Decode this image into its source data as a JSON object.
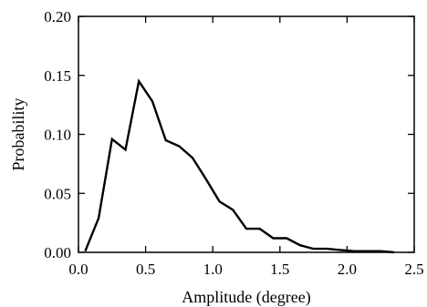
{
  "chart_data": {
    "type": "line",
    "title": "",
    "xlabel": "Amplitude (degree)",
    "ylabel": "Probability",
    "xlim": [
      0.0,
      2.5
    ],
    "ylim": [
      0.0,
      0.2
    ],
    "grid": false,
    "x_ticks": [
      "0.0",
      "0.5",
      "1.0",
      "1.5",
      "2.0",
      "2.5"
    ],
    "y_ticks": [
      "0.00",
      "0.05",
      "0.10",
      "0.15",
      "0.20"
    ],
    "series": [
      {
        "color": "#000000",
        "x": [
          0.05,
          0.15,
          0.25,
          0.35,
          0.45,
          0.55,
          0.65,
          0.75,
          0.85,
          0.95,
          1.05,
          1.15,
          1.25,
          1.35,
          1.45,
          1.55,
          1.65,
          1.75,
          1.85,
          1.95,
          2.05,
          2.15,
          2.25,
          2.35
        ],
        "y": [
          0.001,
          0.029,
          0.096,
          0.087,
          0.145,
          0.128,
          0.095,
          0.09,
          0.08,
          0.062,
          0.043,
          0.036,
          0.02,
          0.02,
          0.012,
          0.012,
          0.006,
          0.003,
          0.003,
          0.002,
          0.001,
          0.001,
          0.001,
          0.0
        ]
      }
    ]
  }
}
